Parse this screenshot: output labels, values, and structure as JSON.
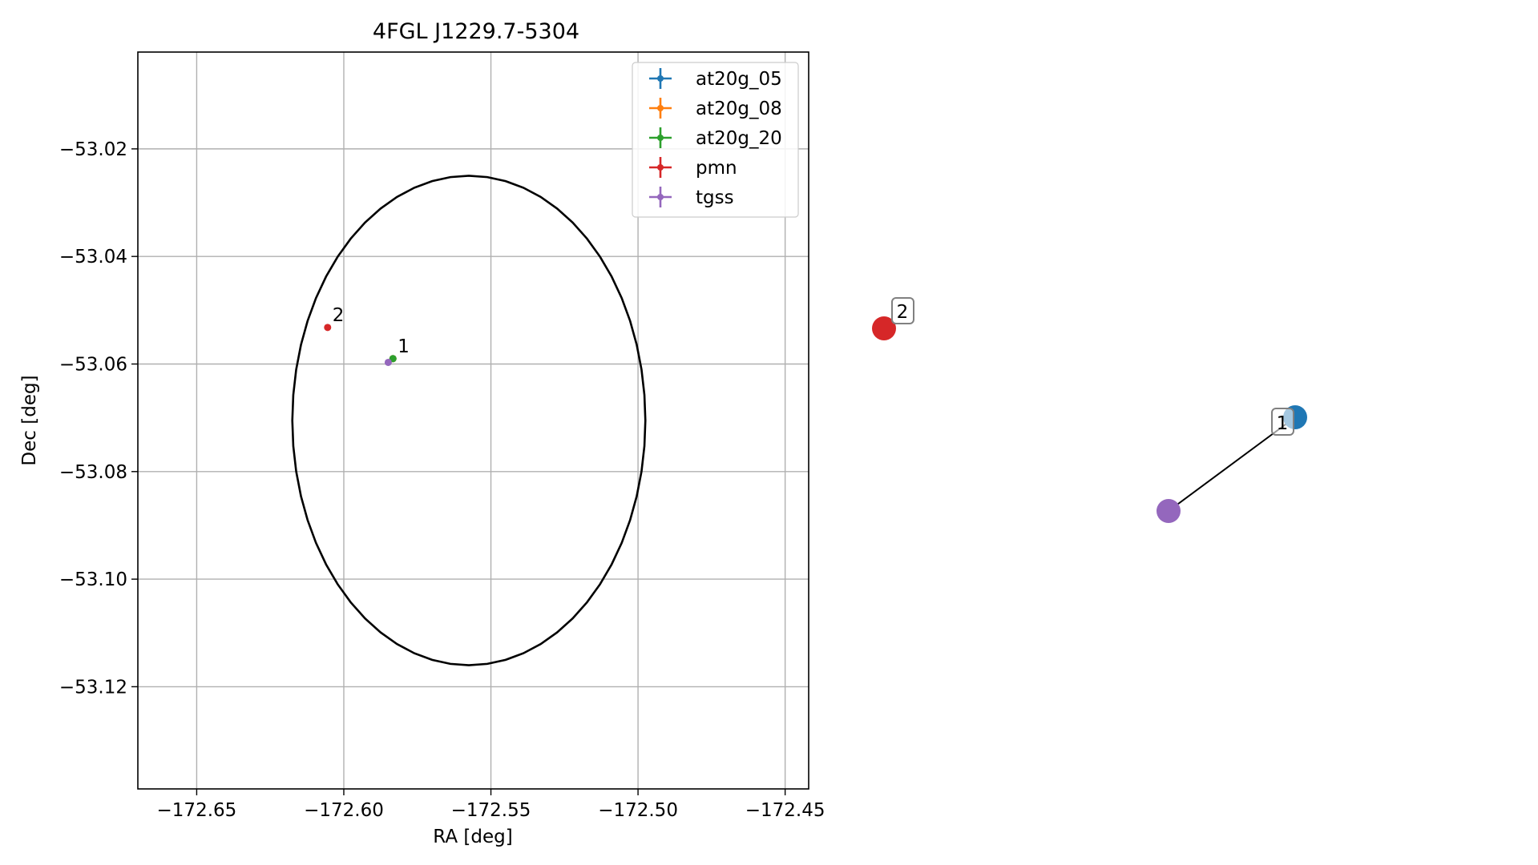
{
  "chart_data": [
    {
      "type": "scatter",
      "title": "4FGL J1229.7-5304",
      "xlabel": "RA [deg]",
      "ylabel": "Dec [deg]",
      "xlim": [
        -172.67,
        -172.442
      ],
      "ylim": [
        -53.139,
        -53.002
      ],
      "grid": true,
      "legend_placement": "upper right",
      "xticks": [
        -172.65,
        -172.6,
        -172.55,
        -172.5,
        -172.45
      ],
      "xtick_labels": [
        "−172.65",
        "−172.60",
        "−172.55",
        "−172.50",
        "−172.45"
      ],
      "yticks": [
        -53.02,
        -53.04,
        -53.06,
        -53.08,
        -53.1,
        -53.12
      ],
      "ytick_labels": [
        "−53.02",
        "−53.04",
        "−53.06",
        "−53.08",
        "−53.10",
        "−53.12"
      ],
      "ellipse": {
        "center_ra": -172.5575,
        "center_dec": -53.0705,
        "semi_axis_ra": 0.06,
        "semi_axis_dec": 0.0455,
        "color": "#000000"
      },
      "series": [
        {
          "name": "at20g_05",
          "color": "#1f77b4",
          "points": [
            {
              "ra": -172.5833,
              "dec": -53.059
            }
          ]
        },
        {
          "name": "at20g_08",
          "color": "#ff7f0e",
          "points": [
            {
              "ra": -172.5833,
              "dec": -53.059
            }
          ]
        },
        {
          "name": "at20g_20",
          "color": "#2ca02c",
          "points": [
            {
              "ra": -172.5833,
              "dec": -53.059
            }
          ]
        },
        {
          "name": "pmn",
          "color": "#d62728",
          "points": [
            {
              "ra": -172.6055,
              "dec": -53.0532
            }
          ]
        },
        {
          "name": "tgss",
          "color": "#9467bd",
          "points": [
            {
              "ra": -172.5849,
              "dec": -53.0597
            }
          ]
        }
      ],
      "annotations": [
        {
          "text": "1",
          "ra": -172.5833,
          "dec": -53.059
        },
        {
          "text": "2",
          "ra": -172.6055,
          "dec": -53.0532
        }
      ]
    },
    {
      "type": "network",
      "nodes": [
        {
          "id": "at20g_05",
          "color": "#1f77b4"
        },
        {
          "id": "pmn",
          "color": "#d62728"
        },
        {
          "id": "tgss",
          "color": "#9467bd"
        }
      ],
      "edges": [
        [
          "at20g_05",
          "tgss"
        ]
      ],
      "labels": [
        {
          "text": "1",
          "node": "at20g_05"
        },
        {
          "text": "2",
          "node": "pmn"
        }
      ]
    }
  ]
}
